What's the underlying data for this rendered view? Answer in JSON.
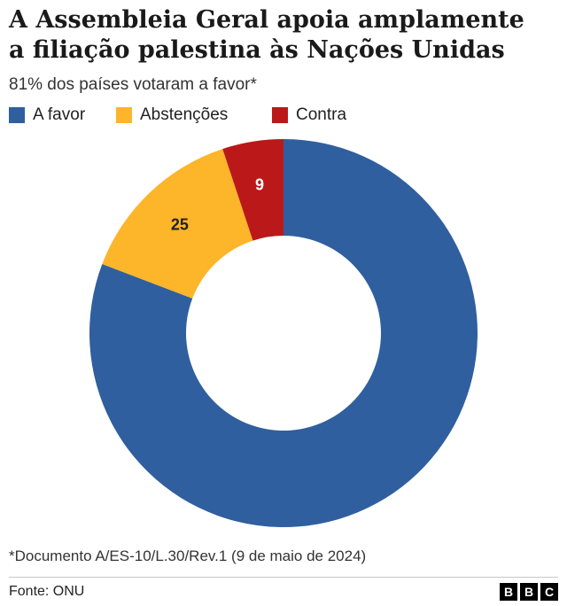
{
  "title_lines": [
    "A Assembleia Geral apoia amplamente",
    "a filiação palestina às Nações Unidas"
  ],
  "subtitle": "81% dos países votaram a favor*",
  "chart_data": {
    "type": "pie",
    "title": "A Assembleia Geral apoia amplamente a filiação palestina às Nações Unidas",
    "subtitle": "81% dos países votaram a favor*",
    "legend_position": "top-left",
    "series": [
      {
        "name": "A favor",
        "value": 143,
        "color": "#2f5f9e",
        "label_color": "#ffffff"
      },
      {
        "name": "Abstenções",
        "value": 25,
        "color": "#fdb529",
        "label_color": "#222222"
      },
      {
        "name": "Contra",
        "value": 9,
        "color": "#bb1919",
        "label_color": "#ffffff"
      }
    ]
  },
  "footnote": "*Documento A/ES-10/L.30/Rev.1 (9 de maio de 2024)",
  "source": "Fonte: ONU",
  "brand_letters": [
    "B",
    "B",
    "C"
  ]
}
